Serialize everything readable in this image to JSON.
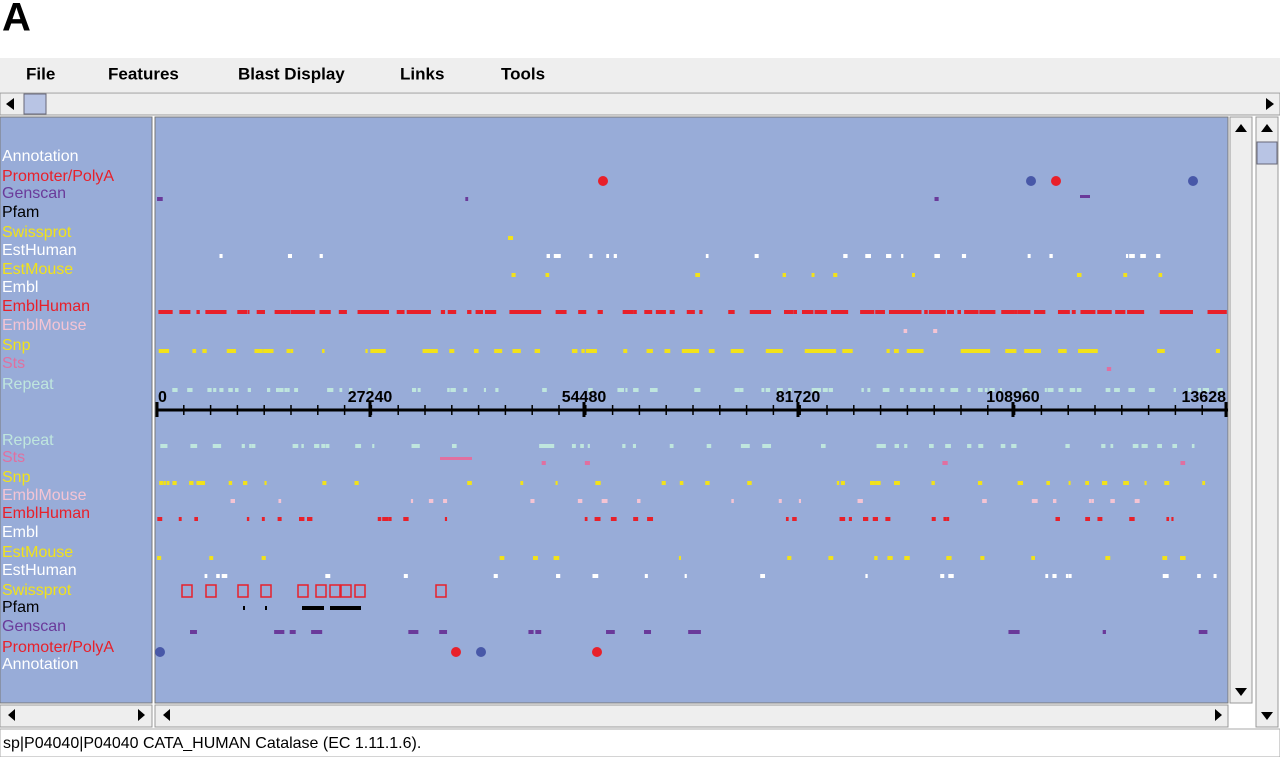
{
  "figure_label": "A",
  "menu": [
    "File",
    "Features",
    "Blast Display",
    "Links",
    "Tools"
  ],
  "tracks_top": [
    {
      "label": "Annotation",
      "color": "#ffffff"
    },
    {
      "label": "Promoter/PolyA",
      "color": "#e8202a"
    },
    {
      "label": "Genscan",
      "color": "#6a3a9a"
    },
    {
      "label": "Pfam",
      "color": "#000000"
    },
    {
      "label": "Swissprot",
      "color": "#f2e21a"
    },
    {
      "label": "EstHuman",
      "color": "#ffffff"
    },
    {
      "label": "EstMouse",
      "color": "#f2e21a"
    },
    {
      "label": "Embl",
      "color": "#ffffff"
    },
    {
      "label": "EmblHuman",
      "color": "#e8202a"
    },
    {
      "label": "EmblMouse",
      "color": "#f4c4d4"
    },
    {
      "label": "Snp",
      "color": "#f2e21a"
    },
    {
      "label": "Sts",
      "color": "#e070a0"
    },
    {
      "label": "Repeat",
      "color": "#bfe6de"
    }
  ],
  "tracks_bottom": [
    {
      "label": "Repeat",
      "color": "#bfe6de"
    },
    {
      "label": "Sts",
      "color": "#e070a0"
    },
    {
      "label": "Snp",
      "color": "#f2e21a"
    },
    {
      "label": "EmblMouse",
      "color": "#f4c4d4"
    },
    {
      "label": "EmblHuman",
      "color": "#e8202a"
    },
    {
      "label": "Embl",
      "color": "#ffffff"
    },
    {
      "label": "EstMouse",
      "color": "#f2e21a"
    },
    {
      "label": "EstHuman",
      "color": "#ffffff"
    },
    {
      "label": "Swissprot",
      "color": "#f2e21a"
    },
    {
      "label": "Pfam",
      "color": "#000000"
    },
    {
      "label": "Genscan",
      "color": "#6a3a9a"
    },
    {
      "label": "Promoter/PolyA",
      "color": "#e8202a"
    },
    {
      "label": "Annotation",
      "color": "#ffffff"
    }
  ],
  "axis_labels": [
    "0",
    "27240",
    "54480",
    "81720",
    "108960",
    "13628"
  ],
  "status": "sp|P04040|P04040 CATA_HUMAN Catalase (EC 1.11.1.6)."
}
